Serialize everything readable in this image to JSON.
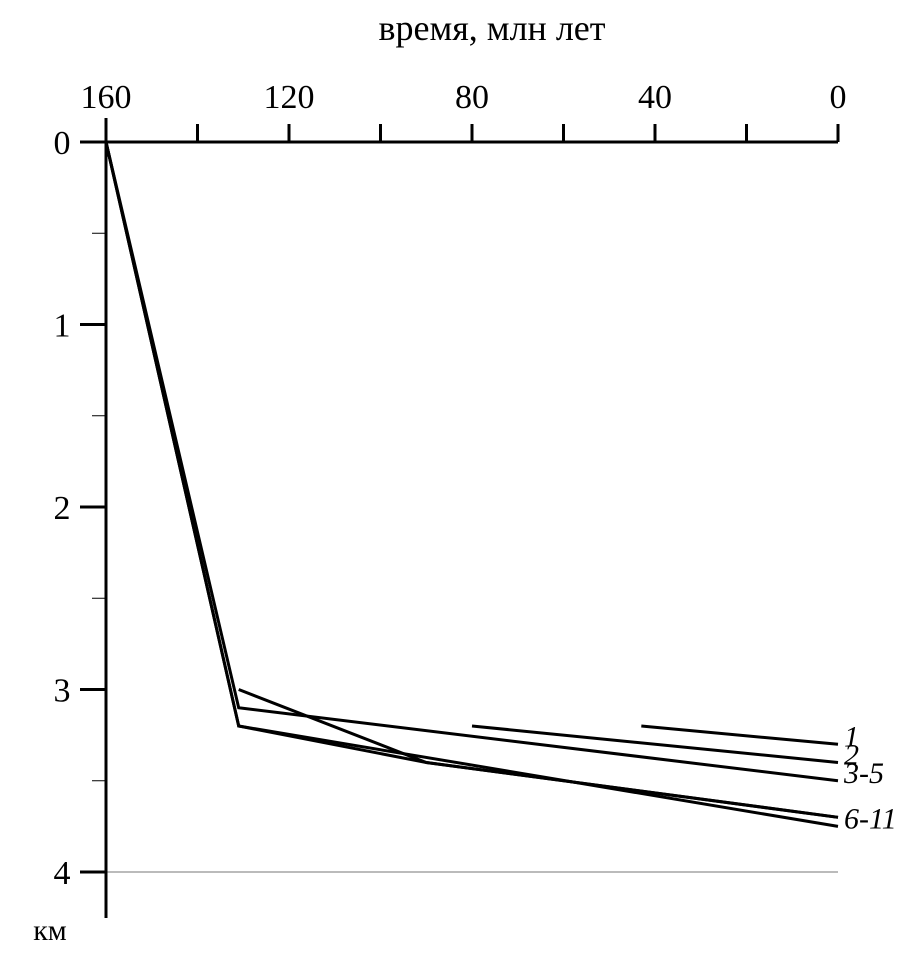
{
  "chart_data": {
    "type": "line",
    "title": "время, млн лет",
    "xlabel": "время, млн лет",
    "ylabel": "км",
    "x_axis_position": "top",
    "x_reversed": true,
    "y_inverted": true,
    "xlim": [
      160,
      0
    ],
    "ylim": [
      0,
      4
    ],
    "x_major_ticks": [
      160,
      140,
      120,
      100,
      80,
      60,
      40,
      20,
      0
    ],
    "x_tick_labels": [
      "160",
      "120",
      "80",
      "40",
      "0"
    ],
    "x_tick_label_values": [
      160,
      120,
      80,
      40,
      0
    ],
    "y_tick_labels": [
      "0",
      "1",
      "2",
      "3",
      "4"
    ],
    "y_tick_label_values": [
      0,
      1,
      2,
      3,
      4
    ],
    "y_minor_ticks": [
      0.5,
      1.5,
      2.5,
      3.5
    ],
    "y_unit": "км",
    "grid": "horizontal line at 4 km only",
    "legend": "labels at right end of lines",
    "series": [
      {
        "name": "1",
        "points": [
          [
            43,
            3.2
          ],
          [
            0,
            3.3
          ]
        ]
      },
      {
        "name": "2",
        "points": [
          [
            80,
            3.2
          ],
          [
            0,
            3.4
          ]
        ]
      },
      {
        "name": "3-5",
        "points": [
          [
            160,
            0
          ],
          [
            131,
            3.1
          ],
          [
            0,
            3.5
          ]
        ]
      },
      {
        "name": "",
        "points": [
          [
            160,
            0
          ],
          [
            131,
            3.2
          ],
          [
            90,
            3.4
          ],
          [
            0,
            3.7
          ]
        ]
      },
      {
        "name": "",
        "points": [
          [
            131,
            3.0
          ],
          [
            90,
            3.4
          ],
          [
            0,
            3.7
          ]
        ]
      },
      {
        "name": "6-11",
        "points": [
          [
            160,
            0
          ],
          [
            131,
            3.2
          ],
          [
            0,
            3.75
          ]
        ]
      }
    ]
  }
}
